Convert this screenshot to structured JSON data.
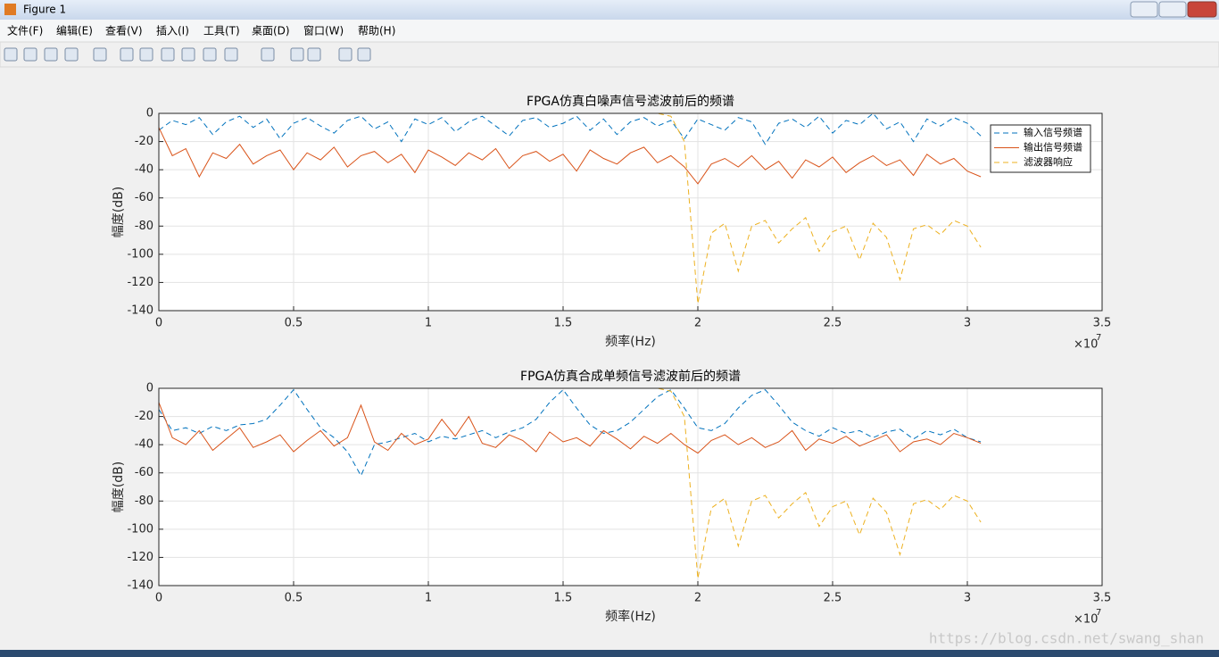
{
  "window": {
    "title": "Figure 1"
  },
  "menu": [
    "文件(F)",
    "编辑(E)",
    "查看(V)",
    "插入(I)",
    "工具(T)",
    "桌面(D)",
    "窗口(W)",
    "帮助(H)"
  ],
  "watermark": "https://blog.csdn.net/swang_shan",
  "chart_data": [
    {
      "type": "line",
      "title": "FPGA仿真白噪声信号滤波前后的频谱",
      "xlabel": "频率(Hz)",
      "ylabel": "幅度(dB)",
      "x_multiplier": "×10",
      "x_multiplier_exponent": "7",
      "xlim": [
        0,
        3.5
      ],
      "xticks": [
        0,
        0.5,
        1,
        1.5,
        2,
        2.5,
        3,
        3.5
      ],
      "ylim": [
        -140,
        0
      ],
      "yticks": [
        -140,
        -120,
        -100,
        -80,
        -60,
        -40,
        -20,
        0
      ],
      "grid": true,
      "legend": "upper right",
      "x": [
        0,
        0.05,
        0.1,
        0.15,
        0.2,
        0.25,
        0.3,
        0.35,
        0.4,
        0.45,
        0.5,
        0.55,
        0.6,
        0.65,
        0.7,
        0.75,
        0.8,
        0.85,
        0.9,
        0.95,
        1,
        1.05,
        1.1,
        1.15,
        1.2,
        1.25,
        1.3,
        1.35,
        1.4,
        1.45,
        1.5,
        1.55,
        1.6,
        1.65,
        1.7,
        1.75,
        1.8,
        1.85,
        1.9,
        1.95,
        2,
        2.05,
        2.1,
        2.15,
        2.2,
        2.25,
        2.3,
        2.35,
        2.4,
        2.45,
        2.5,
        2.55,
        2.6,
        2.65,
        2.7,
        2.75,
        2.8,
        2.85,
        2.9,
        2.95,
        3,
        3.05
      ],
      "series": [
        {
          "name": "输入信号频谱",
          "color": "#0072bd",
          "dashed": true,
          "values": [
            -12,
            -5,
            -8,
            -3,
            -15,
            -6,
            -2,
            -10,
            -4,
            -18,
            -7,
            -3,
            -9,
            -14,
            -5,
            -2,
            -11,
            -6,
            -20,
            -4,
            -8,
            -3,
            -13,
            -6,
            -2,
            -9,
            -16,
            -5,
            -3,
            -10,
            -7,
            -2,
            -12,
            -4,
            -15,
            -6,
            -3,
            -9,
            -5,
            -18,
            -4,
            -8,
            -12,
            -3,
            -6,
            -22,
            -7,
            -4,
            -10,
            -2,
            -14,
            -5,
            -8,
            0,
            -11,
            -6,
            -20,
            -4,
            -9,
            -3,
            -7,
            -16
          ]
        },
        {
          "name": "输出信号频谱",
          "color": "#d95319",
          "dashed": false,
          "values": [
            -10,
            -30,
            -25,
            -45,
            -28,
            -32,
            -22,
            -36,
            -30,
            -26,
            -40,
            -28,
            -33,
            -24,
            -38,
            -30,
            -27,
            -35,
            -29,
            -42,
            -26,
            -31,
            -37,
            -28,
            -33,
            -25,
            -39,
            -30,
            -27,
            -34,
            -29,
            -41,
            -26,
            -32,
            -36,
            -28,
            -24,
            -35,
            -30,
            -38,
            -50,
            -36,
            -32,
            -38,
            -30,
            -40,
            -34,
            -46,
            -33,
            -38,
            -31,
            -42,
            -35,
            -30,
            -37,
            -33,
            -44,
            -29,
            -36,
            -32,
            -41,
            -45
          ]
        },
        {
          "name": "滤波器响应",
          "color": "#edb120",
          "dashed": true,
          "values": [
            0,
            0,
            0,
            0,
            0,
            0,
            0,
            0,
            0,
            0,
            0,
            0,
            0,
            0,
            0,
            0,
            0,
            0,
            0,
            0,
            0,
            0,
            0,
            0,
            0,
            0,
            0,
            0,
            0,
            0,
            0,
            0,
            0,
            0,
            0,
            0,
            0,
            0,
            -2,
            -20,
            -135,
            -85,
            -78,
            -112,
            -80,
            -76,
            -92,
            -82,
            -74,
            -98,
            -84,
            -80,
            -104,
            -78,
            -88,
            -118,
            -82,
            -79,
            -86,
            -76,
            -80,
            -95
          ]
        }
      ]
    },
    {
      "type": "line",
      "title": "FPGA仿真合成单频信号滤波前后的频谱",
      "xlabel": "频率(Hz)",
      "ylabel": "幅度(dB)",
      "x_multiplier": "×10",
      "x_multiplier_exponent": "7",
      "xlim": [
        0,
        3.5
      ],
      "xticks": [
        0,
        0.5,
        1,
        1.5,
        2,
        2.5,
        3,
        3.5
      ],
      "ylim": [
        -140,
        0
      ],
      "yticks": [
        -140,
        -120,
        -100,
        -80,
        -60,
        -40,
        -20,
        0
      ],
      "grid": true,
      "x": [
        0,
        0.05,
        0.1,
        0.15,
        0.2,
        0.25,
        0.3,
        0.35,
        0.4,
        0.45,
        0.5,
        0.55,
        0.6,
        0.65,
        0.7,
        0.75,
        0.8,
        0.85,
        0.9,
        0.95,
        1,
        1.05,
        1.1,
        1.15,
        1.2,
        1.25,
        1.3,
        1.35,
        1.4,
        1.45,
        1.5,
        1.55,
        1.6,
        1.65,
        1.7,
        1.75,
        1.8,
        1.85,
        1.9,
        1.95,
        2,
        2.05,
        2.1,
        2.15,
        2.2,
        2.25,
        2.3,
        2.35,
        2.4,
        2.45,
        2.5,
        2.55,
        2.6,
        2.65,
        2.7,
        2.75,
        2.8,
        2.85,
        2.9,
        2.95,
        3,
        3.05
      ],
      "series": [
        {
          "color": "#0072bd",
          "dashed": true,
          "values": [
            -15,
            -30,
            -28,
            -32,
            -27,
            -30,
            -26,
            -25,
            -22,
            -12,
            -1,
            -15,
            -28,
            -35,
            -45,
            -62,
            -40,
            -38,
            -35,
            -32,
            -38,
            -34,
            -36,
            -33,
            -30,
            -35,
            -31,
            -28,
            -22,
            -10,
            -1,
            -14,
            -26,
            -32,
            -30,
            -24,
            -15,
            -6,
            -1,
            -14,
            -28,
            -30,
            -25,
            -14,
            -5,
            -1,
            -12,
            -24,
            -30,
            -34,
            -28,
            -32,
            -30,
            -35,
            -31,
            -29,
            -36,
            -30,
            -33,
            -29,
            -35,
            -38
          ]
        },
        {
          "color": "#d95319",
          "dashed": false,
          "values": [
            -10,
            -35,
            -40,
            -30,
            -44,
            -36,
            -28,
            -42,
            -38,
            -33,
            -45,
            -37,
            -30,
            -41,
            -35,
            -12,
            -38,
            -44,
            -32,
            -40,
            -36,
            -22,
            -34,
            -20,
            -39,
            -42,
            -33,
            -37,
            -45,
            -31,
            -38,
            -35,
            -41,
            -30,
            -36,
            -43,
            -34,
            -39,
            -32,
            -40,
            -46,
            -37,
            -33,
            -40,
            -35,
            -42,
            -38,
            -30,
            -44,
            -36,
            -39,
            -34,
            -41,
            -37,
            -33,
            -45,
            -38,
            -36,
            -40,
            -32,
            -35,
            -39
          ]
        },
        {
          "color": "#edb120",
          "dashed": true,
          "values": [
            0,
            0,
            0,
            0,
            0,
            0,
            0,
            0,
            0,
            0,
            0,
            0,
            0,
            0,
            0,
            0,
            0,
            0,
            0,
            0,
            0,
            0,
            0,
            0,
            0,
            0,
            0,
            0,
            0,
            0,
            0,
            0,
            0,
            0,
            0,
            0,
            0,
            0,
            -2,
            -20,
            -135,
            -85,
            -78,
            -112,
            -80,
            -76,
            -92,
            -82,
            -74,
            -98,
            -84,
            -80,
            -104,
            -78,
            -88,
            -118,
            -82,
            -79,
            -86,
            -76,
            -80,
            -95
          ]
        }
      ]
    }
  ]
}
